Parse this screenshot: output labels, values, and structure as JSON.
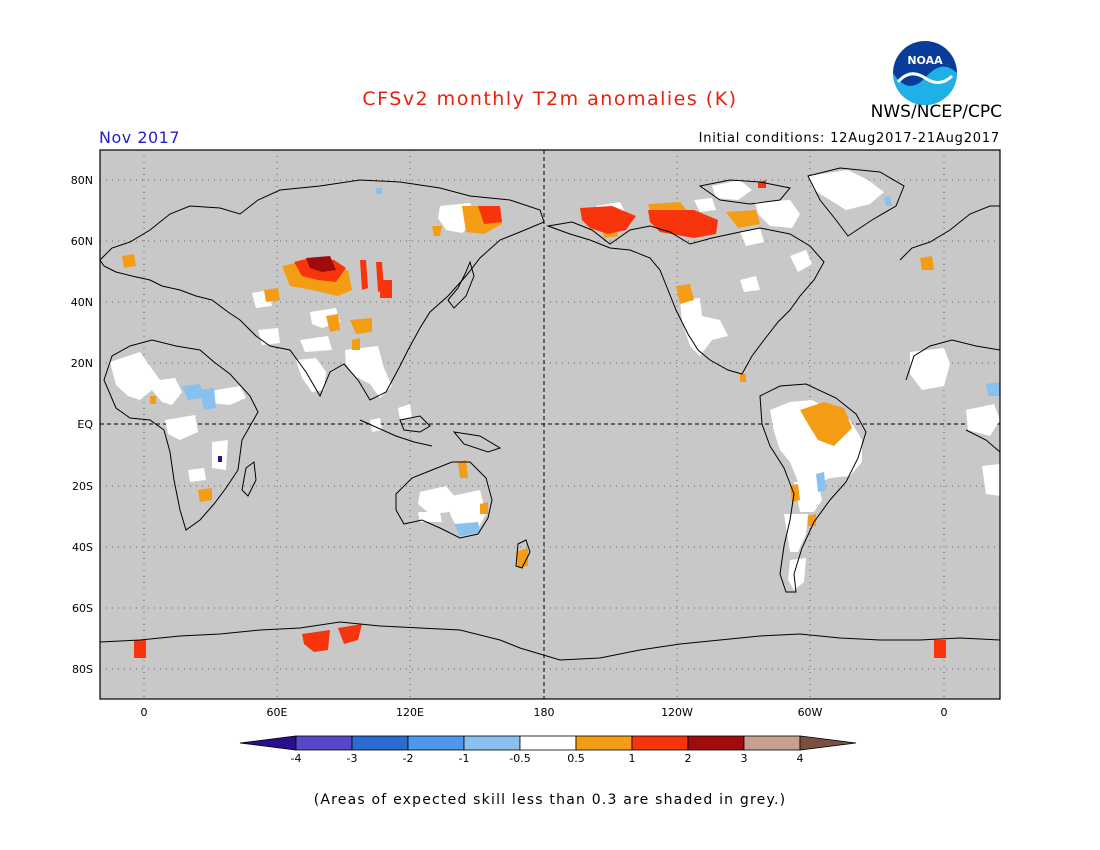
{
  "title": "CFSv2 monthly T2m anomalies (K)",
  "org": "NWS/NCEP/CPC",
  "logo_text": "NOAA",
  "month": "Nov 2017",
  "initial_conditions": "Initial conditions: 12Aug2017-21Aug2017",
  "footnote": "(Areas of expected skill less than 0.3 are shaded in grey.)",
  "colors": {
    "title": "#e8200c",
    "month": "#2020d0",
    "grey_mask": "#c8c8c8",
    "coast": "#000000"
  },
  "map": {
    "lat_labels": [
      "80N",
      "60N",
      "40N",
      "20N",
      "EQ",
      "20S",
      "40S",
      "60S",
      "80S"
    ],
    "lon_labels": [
      "0",
      "60E",
      "120E",
      "180",
      "120W",
      "60W",
      "0"
    ]
  },
  "colorbar": {
    "labels": [
      "-4",
      "-3",
      "-2",
      "-1",
      "-0.5",
      "0.5",
      "1",
      "2",
      "3",
      "4"
    ],
    "colors": [
      "#2a0f8c",
      "#5848c8",
      "#2c6cd0",
      "#4c98ec",
      "#88c0f0",
      "#ffffff",
      "#f49c14",
      "#f8340c",
      "#a00c0c",
      "#c8a090",
      "#7c5040"
    ]
  }
}
